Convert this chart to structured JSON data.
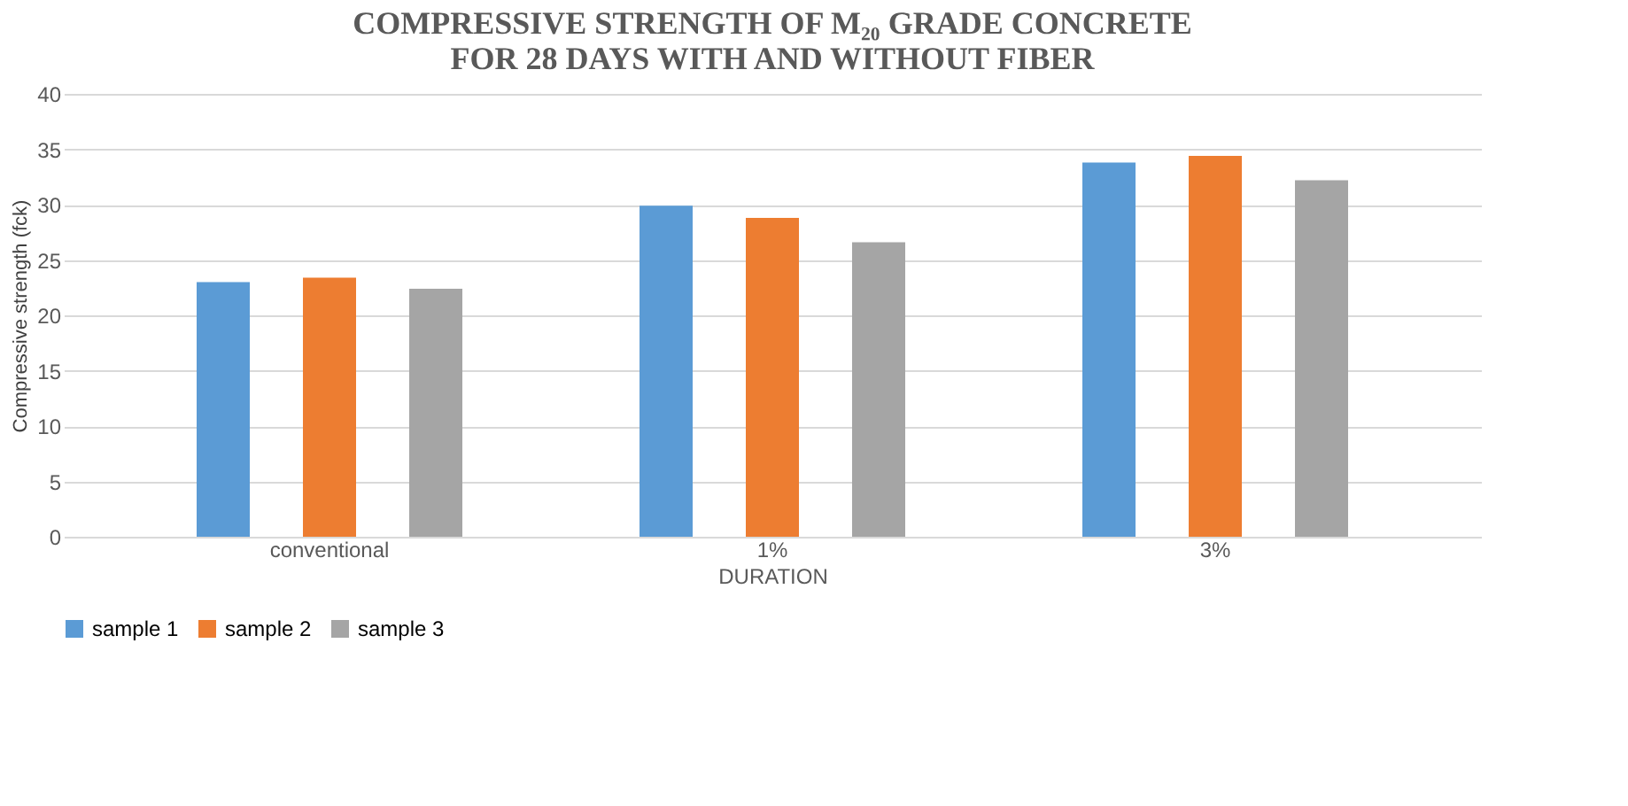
{
  "chart_data": {
    "type": "bar",
    "title": [
      "COMPRESSIVE STRENGTH OF M₂₀ GRADE CONCRETE",
      "FOR 28 DAYS WITH AND WITHOUT FIBER"
    ],
    "xlabel": "DURATION",
    "ylabel": "Compressive strength (fck)",
    "categories": [
      "conventional",
      "1%",
      "3%"
    ],
    "series": [
      {
        "name": "sample 1",
        "color": "#5b9bd5",
        "values": [
          23.0,
          29.9,
          33.8
        ]
      },
      {
        "name": "sample 2",
        "color": "#ed7d31",
        "values": [
          23.4,
          28.8,
          34.4
        ]
      },
      {
        "name": "sample 3",
        "color": "#a5a5a5",
        "values": [
          22.4,
          26.6,
          32.2
        ]
      }
    ],
    "ylim": [
      0,
      40
    ],
    "yticks": [
      0,
      5,
      10,
      15,
      20,
      25,
      30,
      35,
      40
    ],
    "grid": "y",
    "legend": "bottom"
  }
}
